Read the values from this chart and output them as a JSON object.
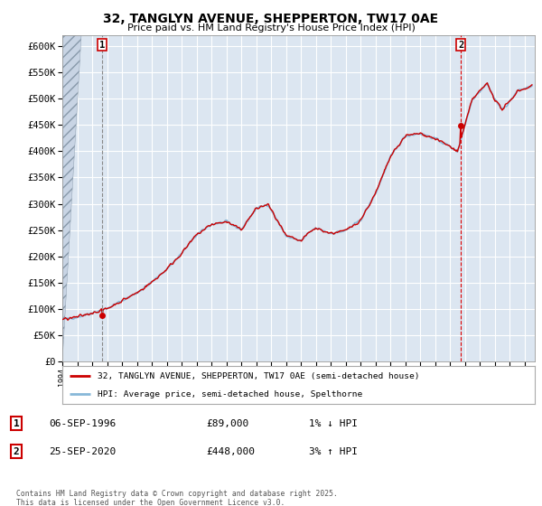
{
  "title": "32, TANGLYN AVENUE, SHEPPERTON, TW17 0AE",
  "subtitle": "Price paid vs. HM Land Registry's House Price Index (HPI)",
  "bg_color": "#ffffff",
  "chart_bg": "#dce6f1",
  "grid_color": "#ffffff",
  "ylim": [
    0,
    620000
  ],
  "yticks": [
    0,
    50000,
    100000,
    150000,
    200000,
    250000,
    300000,
    350000,
    400000,
    450000,
    500000,
    550000,
    600000
  ],
  "ytick_labels": [
    "£0",
    "£50K",
    "£100K",
    "£150K",
    "£200K",
    "£250K",
    "£300K",
    "£350K",
    "£400K",
    "£450K",
    "£500K",
    "£550K",
    "£600K"
  ],
  "sale1_year": 1996.69,
  "sale1_price": 89000,
  "sale1_label": "1",
  "sale2_year": 2020.73,
  "sale2_price": 448000,
  "sale2_label": "2",
  "legend_line1": "32, TANGLYN AVENUE, SHEPPERTON, TW17 0AE (semi-detached house)",
  "legend_line2": "HPI: Average price, semi-detached house, Spelthorne",
  "red_line_color": "#cc0000",
  "blue_line_color": "#88b8d8",
  "sale1_vline_color": "#aaaaaa",
  "sale2_vline_color": "#dd0000",
  "footnote": "Contains HM Land Registry data © Crown copyright and database right 2025.\nThis data is licensed under the Open Government Licence v3.0."
}
